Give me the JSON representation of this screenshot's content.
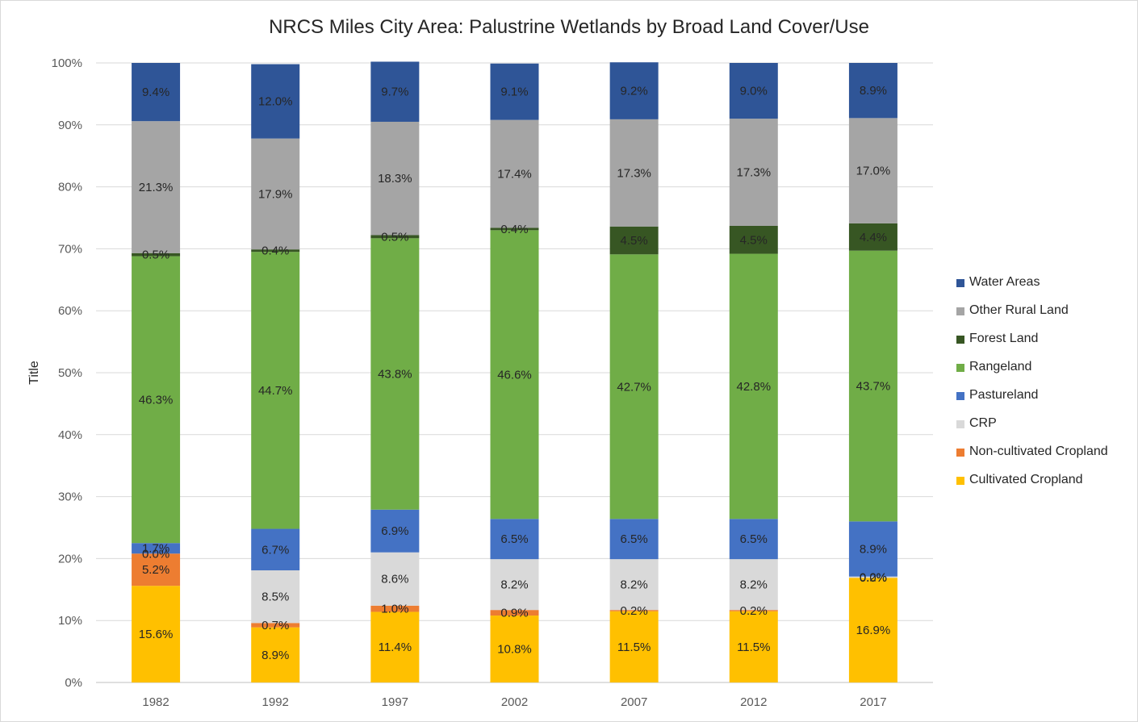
{
  "chart_data": {
    "type": "bar",
    "stacked": true,
    "percent_stacked": true,
    "title": "NRCS Miles City Area: Palustrine Wetlands by Broad Land Cover/Use",
    "xlabel": "",
    "ylabel": "Title",
    "ylim": [
      0,
      100
    ],
    "y_ticks": [
      "0%",
      "10%",
      "20%",
      "30%",
      "40%",
      "50%",
      "60%",
      "70%",
      "80%",
      "90%",
      "100%"
    ],
    "categories": [
      "1982",
      "1992",
      "1997",
      "2002",
      "2007",
      "2012",
      "2017"
    ],
    "grid": true,
    "legend_position": "right",
    "series": [
      {
        "name": "Cultivated Cropland",
        "color": "#FFC000",
        "values": [
          15.6,
          8.9,
          11.4,
          10.8,
          11.5,
          11.5,
          16.9
        ],
        "labels": [
          "15.6%",
          "8.9%",
          "11.4%",
          "10.8%",
          "11.5%",
          "11.5%",
          "16.9%"
        ]
      },
      {
        "name": "Non-cultivated Cropland",
        "color": "#ED7D31",
        "values": [
          5.2,
          0.7,
          1.0,
          0.9,
          0.2,
          0.2,
          0.0
        ],
        "labels": [
          "5.2%",
          "0.7%",
          "1.0%",
          "0.9%",
          "0.2%",
          "0.2%",
          "0.0%"
        ]
      },
      {
        "name": "CRP",
        "color": "#D9D9D9",
        "values": [
          0.0,
          8.5,
          8.6,
          8.2,
          8.2,
          8.2,
          0.2
        ],
        "labels": [
          "0.0%",
          "8.5%",
          "8.6%",
          "8.2%",
          "8.2%",
          "8.2%",
          "0.2%"
        ]
      },
      {
        "name": "Pastureland",
        "color": "#4472C4",
        "values": [
          1.7,
          6.7,
          6.9,
          6.5,
          6.5,
          6.5,
          8.9
        ],
        "labels": [
          "1.7%",
          "6.7%",
          "6.9%",
          "6.5%",
          "6.5%",
          "6.5%",
          "8.9%"
        ]
      },
      {
        "name": "Rangeland",
        "color": "#70AD47",
        "values": [
          46.3,
          44.7,
          43.8,
          46.6,
          42.7,
          42.8,
          43.7
        ],
        "labels": [
          "46.3%",
          "44.7%",
          "43.8%",
          "46.6%",
          "42.7%",
          "42.8%",
          "43.7%"
        ]
      },
      {
        "name": "Forest Land",
        "color": "#375623",
        "values": [
          0.5,
          0.4,
          0.5,
          0.4,
          4.5,
          4.5,
          4.4
        ],
        "labels": [
          "0.5%",
          "0.4%",
          "0.5%",
          "0.4%",
          "4.5%",
          "4.5%",
          "4.4%"
        ]
      },
      {
        "name": "Other Rural Land",
        "color": "#A5A5A5",
        "values": [
          21.3,
          17.9,
          18.3,
          17.4,
          17.3,
          17.3,
          17.0
        ],
        "labels": [
          "21.3%",
          "17.9%",
          "18.3%",
          "17.4%",
          "17.3%",
          "17.3%",
          "17.0%"
        ]
      },
      {
        "name": "Water Areas",
        "color": "#2F5597",
        "values": [
          9.4,
          12.0,
          9.7,
          9.1,
          9.2,
          9.0,
          8.9
        ],
        "labels": [
          "9.4%",
          "12.0%",
          "9.7%",
          "9.1%",
          "9.2%",
          "9.0%",
          "8.9%"
        ]
      }
    ]
  }
}
